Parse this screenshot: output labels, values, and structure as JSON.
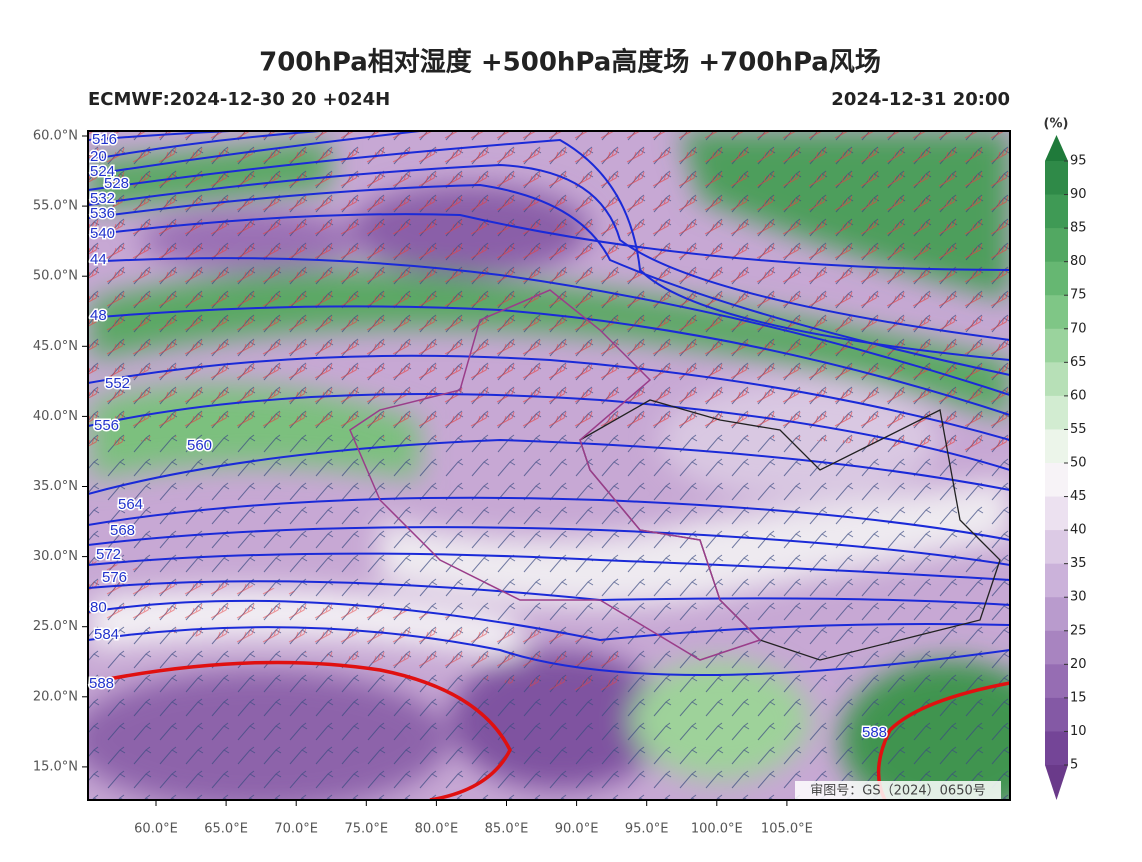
{
  "header": {
    "title": "700hPa相对湿度 +500hPa高度场 +700hPa风场",
    "model_run": "ECMWF:2024-12-30 20 +024H",
    "valid_time": "2024-12-31 20:00"
  },
  "map": {
    "lat_labels": [
      "60.0°N",
      "55.0°N",
      "50.0°N",
      "45.0°N",
      "40.0°N",
      "35.0°N",
      "30.0°N",
      "25.0°N",
      "20.0°N",
      "15.0°N"
    ],
    "lon_labels": [
      "60.0°E",
      "65.0°E",
      "70.0°E",
      "75.0°E",
      "80.0°E",
      "85.0°E",
      "90.0°E",
      "95.0°E",
      "100.0°E",
      "105.0°E"
    ],
    "contour_labels": [
      "516",
      "20",
      "524",
      "528",
      "532",
      "536",
      "540",
      "44",
      "48",
      "552",
      "556",
      "560",
      "564",
      "568",
      "572",
      "576",
      "80",
      "584",
      "588",
      "588"
    ],
    "watermark": "审图号：GS（2024）0650号"
  },
  "colorbar": {
    "unit": "(%)",
    "labels": [
      "95",
      "90",
      "85",
      "80",
      "75",
      "70",
      "65",
      "60",
      "55",
      "50",
      "45",
      "40",
      "35",
      "30",
      "25",
      "20",
      "15",
      "10",
      "5"
    ]
  }
}
